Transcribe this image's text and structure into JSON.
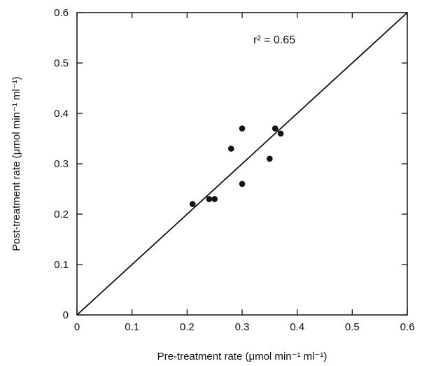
{
  "chart_data": {
    "type": "scatter",
    "xlabel": "Pre-treatment rate (μmol min⁻¹ ml⁻¹)",
    "ylabel": "Post-treatment rate (μmol min⁻¹ ml⁻¹)",
    "xlim": [
      0,
      0.6
    ],
    "ylim": [
      0,
      0.6
    ],
    "x_ticks": [
      "0",
      "0.1",
      "0.2",
      "0.3",
      "0.4",
      "0.5",
      "0.6"
    ],
    "y_ticks": [
      "0",
      "0.1",
      "0.2",
      "0.3",
      "0.4",
      "0.5",
      "0.6"
    ],
    "grid": false,
    "annotation": "r² = 0.65",
    "reference_line": {
      "type": "identity",
      "from": [
        0,
        0
      ],
      "to": [
        0.6,
        0.6
      ]
    },
    "points": [
      {
        "x": 0.21,
        "y": 0.22
      },
      {
        "x": 0.24,
        "y": 0.23
      },
      {
        "x": 0.25,
        "y": 0.23
      },
      {
        "x": 0.28,
        "y": 0.33
      },
      {
        "x": 0.3,
        "y": 0.37
      },
      {
        "x": 0.3,
        "y": 0.26
      },
      {
        "x": 0.35,
        "y": 0.31
      },
      {
        "x": 0.36,
        "y": 0.37
      },
      {
        "x": 0.37,
        "y": 0.36
      }
    ]
  }
}
